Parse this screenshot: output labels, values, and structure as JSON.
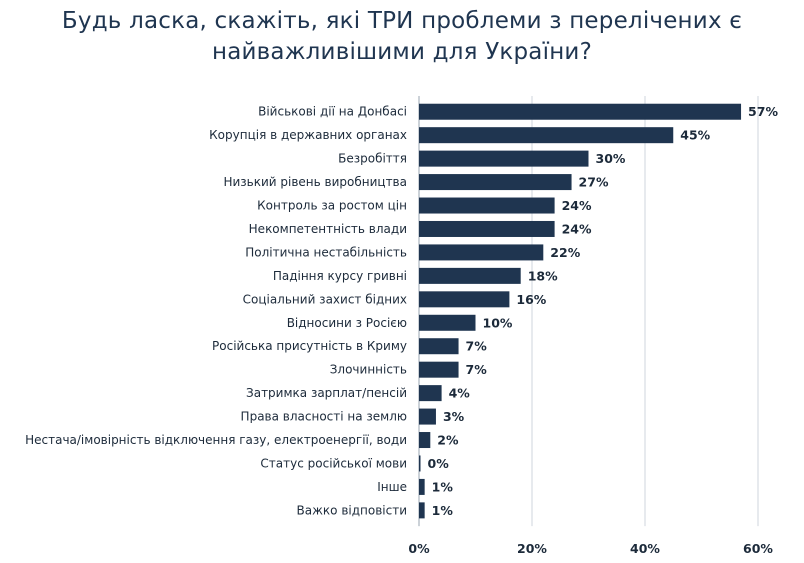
{
  "chart_data": {
    "type": "bar",
    "orientation": "horizontal",
    "title": "Будь ласка, скажіть, які ТРИ проблеми з перелічених є найважливішими для України?",
    "title_lines": [
      "Будь ласка, скажіть, які ТРИ проблеми з перелічених є",
      "найважливішими для України?"
    ],
    "categories": [
      "Військові дії на Донбасі",
      "Корупція в державних органах",
      "Безробіття",
      "Низький рівень виробництва",
      "Контроль за ростом цін",
      "Некомпетентність влади",
      "Політична нестабільність",
      "Падіння курсу гривні",
      "Соціальний захист бідних",
      "Відносини з Росією",
      "Російська присутність в Криму",
      "Злочинність",
      "Затримка зарплат/пенсій",
      "Права власності на землю",
      "Нестача/імовірність відключення газу, електроенергії, води",
      "Статус російської мови",
      "Інше",
      "Важко відповісти"
    ],
    "values": [
      57,
      45,
      30,
      27,
      24,
      24,
      22,
      18,
      16,
      10,
      7,
      7,
      4,
      3,
      2,
      0,
      1,
      1
    ],
    "value_labels": [
      "57%",
      "45%",
      "30%",
      "27%",
      "24%",
      "24%",
      "22%",
      "18%",
      "16%",
      "10%",
      "7%",
      "7%",
      "4%",
      "3%",
      "2%",
      "0%",
      "1%",
      "1%"
    ],
    "xlim": [
      0,
      60
    ],
    "xticks": [
      0,
      20,
      40,
      60
    ],
    "xtick_labels": [
      "0%",
      "20%",
      "40%",
      "60%"
    ],
    "grid": "vertical",
    "legend": "none",
    "bar_color": "#1f3550"
  }
}
